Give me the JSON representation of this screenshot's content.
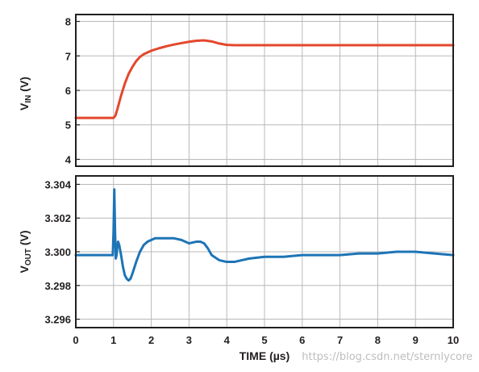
{
  "chart_data": [
    {
      "type": "line",
      "panel": "top",
      "ylabel_main": "V",
      "ylabel_sub": "IN",
      "ylabel_unit": " (V)",
      "xlim": [
        0,
        10
      ],
      "ylim": [
        3.8,
        8.2
      ],
      "yticks": [
        4,
        5,
        6,
        7,
        8
      ],
      "ytick_labels": [
        "4",
        "5",
        "6",
        "7",
        "8"
      ],
      "grid": true,
      "series": [
        {
          "color": "#e4472b",
          "x": [
            0,
            0.5,
            1.0,
            1.05,
            1.1,
            1.2,
            1.3,
            1.4,
            1.5,
            1.6,
            1.7,
            1.8,
            1.9,
            2.0,
            2.2,
            2.4,
            2.6,
            2.8,
            3.0,
            3.2,
            3.4,
            3.6,
            3.8,
            4.0,
            4.2,
            4.5,
            5,
            6,
            7,
            8,
            9,
            10
          ],
          "y": [
            5.2,
            5.2,
            5.2,
            5.27,
            5.45,
            5.85,
            6.2,
            6.48,
            6.68,
            6.85,
            6.97,
            7.05,
            7.1,
            7.15,
            7.22,
            7.28,
            7.33,
            7.37,
            7.41,
            7.44,
            7.45,
            7.42,
            7.36,
            7.32,
            7.31,
            7.31,
            7.31,
            7.31,
            7.31,
            7.31,
            7.31,
            7.31
          ]
        }
      ]
    },
    {
      "type": "line",
      "panel": "bottom",
      "ylabel_main": "V",
      "ylabel_sub": "OUT",
      "ylabel_unit": " (V)",
      "xlabel": "TIME (µs)",
      "xlim": [
        0,
        10
      ],
      "ylim": [
        3.2955,
        3.3045
      ],
      "yticks": [
        3.296,
        3.298,
        3.3,
        3.302,
        3.304
      ],
      "ytick_labels": [
        "3.296",
        "3.298",
        "3.300",
        "3.302",
        "3.304"
      ],
      "xticks": [
        0,
        1,
        2,
        3,
        4,
        5,
        6,
        7,
        8,
        9,
        10
      ],
      "xtick_labels": [
        "0",
        "1",
        "2",
        "3",
        "4",
        "5",
        "6",
        "7",
        "8",
        "9",
        "10"
      ],
      "grid": true,
      "series": [
        {
          "color": "#1d74b6",
          "x": [
            0,
            0.5,
            0.98,
            1.0,
            1.02,
            1.04,
            1.06,
            1.08,
            1.1,
            1.12,
            1.15,
            1.2,
            1.25,
            1.3,
            1.35,
            1.4,
            1.45,
            1.5,
            1.6,
            1.7,
            1.8,
            1.9,
            2.0,
            2.1,
            2.2,
            2.4,
            2.6,
            2.8,
            3.0,
            3.2,
            3.3,
            3.4,
            3.5,
            3.6,
            3.8,
            4.0,
            4.2,
            4.4,
            4.6,
            5.0,
            5.5,
            6.0,
            6.5,
            7.0,
            7.5,
            8.0,
            8.5,
            9.0,
            9.5,
            10.0
          ],
          "y": [
            3.2998,
            3.2998,
            3.2998,
            3.3012,
            3.3037,
            3.3012,
            3.2996,
            3.2998,
            3.3003,
            3.3006,
            3.3004,
            3.2998,
            3.2991,
            3.2986,
            3.2984,
            3.2983,
            3.2984,
            3.2987,
            3.2994,
            3.3,
            3.3004,
            3.3006,
            3.3007,
            3.3008,
            3.3008,
            3.3008,
            3.3008,
            3.3007,
            3.3005,
            3.3006,
            3.3006,
            3.3005,
            3.3002,
            3.2998,
            3.2995,
            3.2994,
            3.2994,
            3.2995,
            3.2996,
            3.2997,
            3.2997,
            3.2998,
            3.2998,
            3.2998,
            3.2999,
            3.2999,
            3.3,
            3.3,
            3.2999,
            3.2998
          ]
        }
      ]
    }
  ],
  "watermark": "https://blog.csdn.net/sternlycore"
}
